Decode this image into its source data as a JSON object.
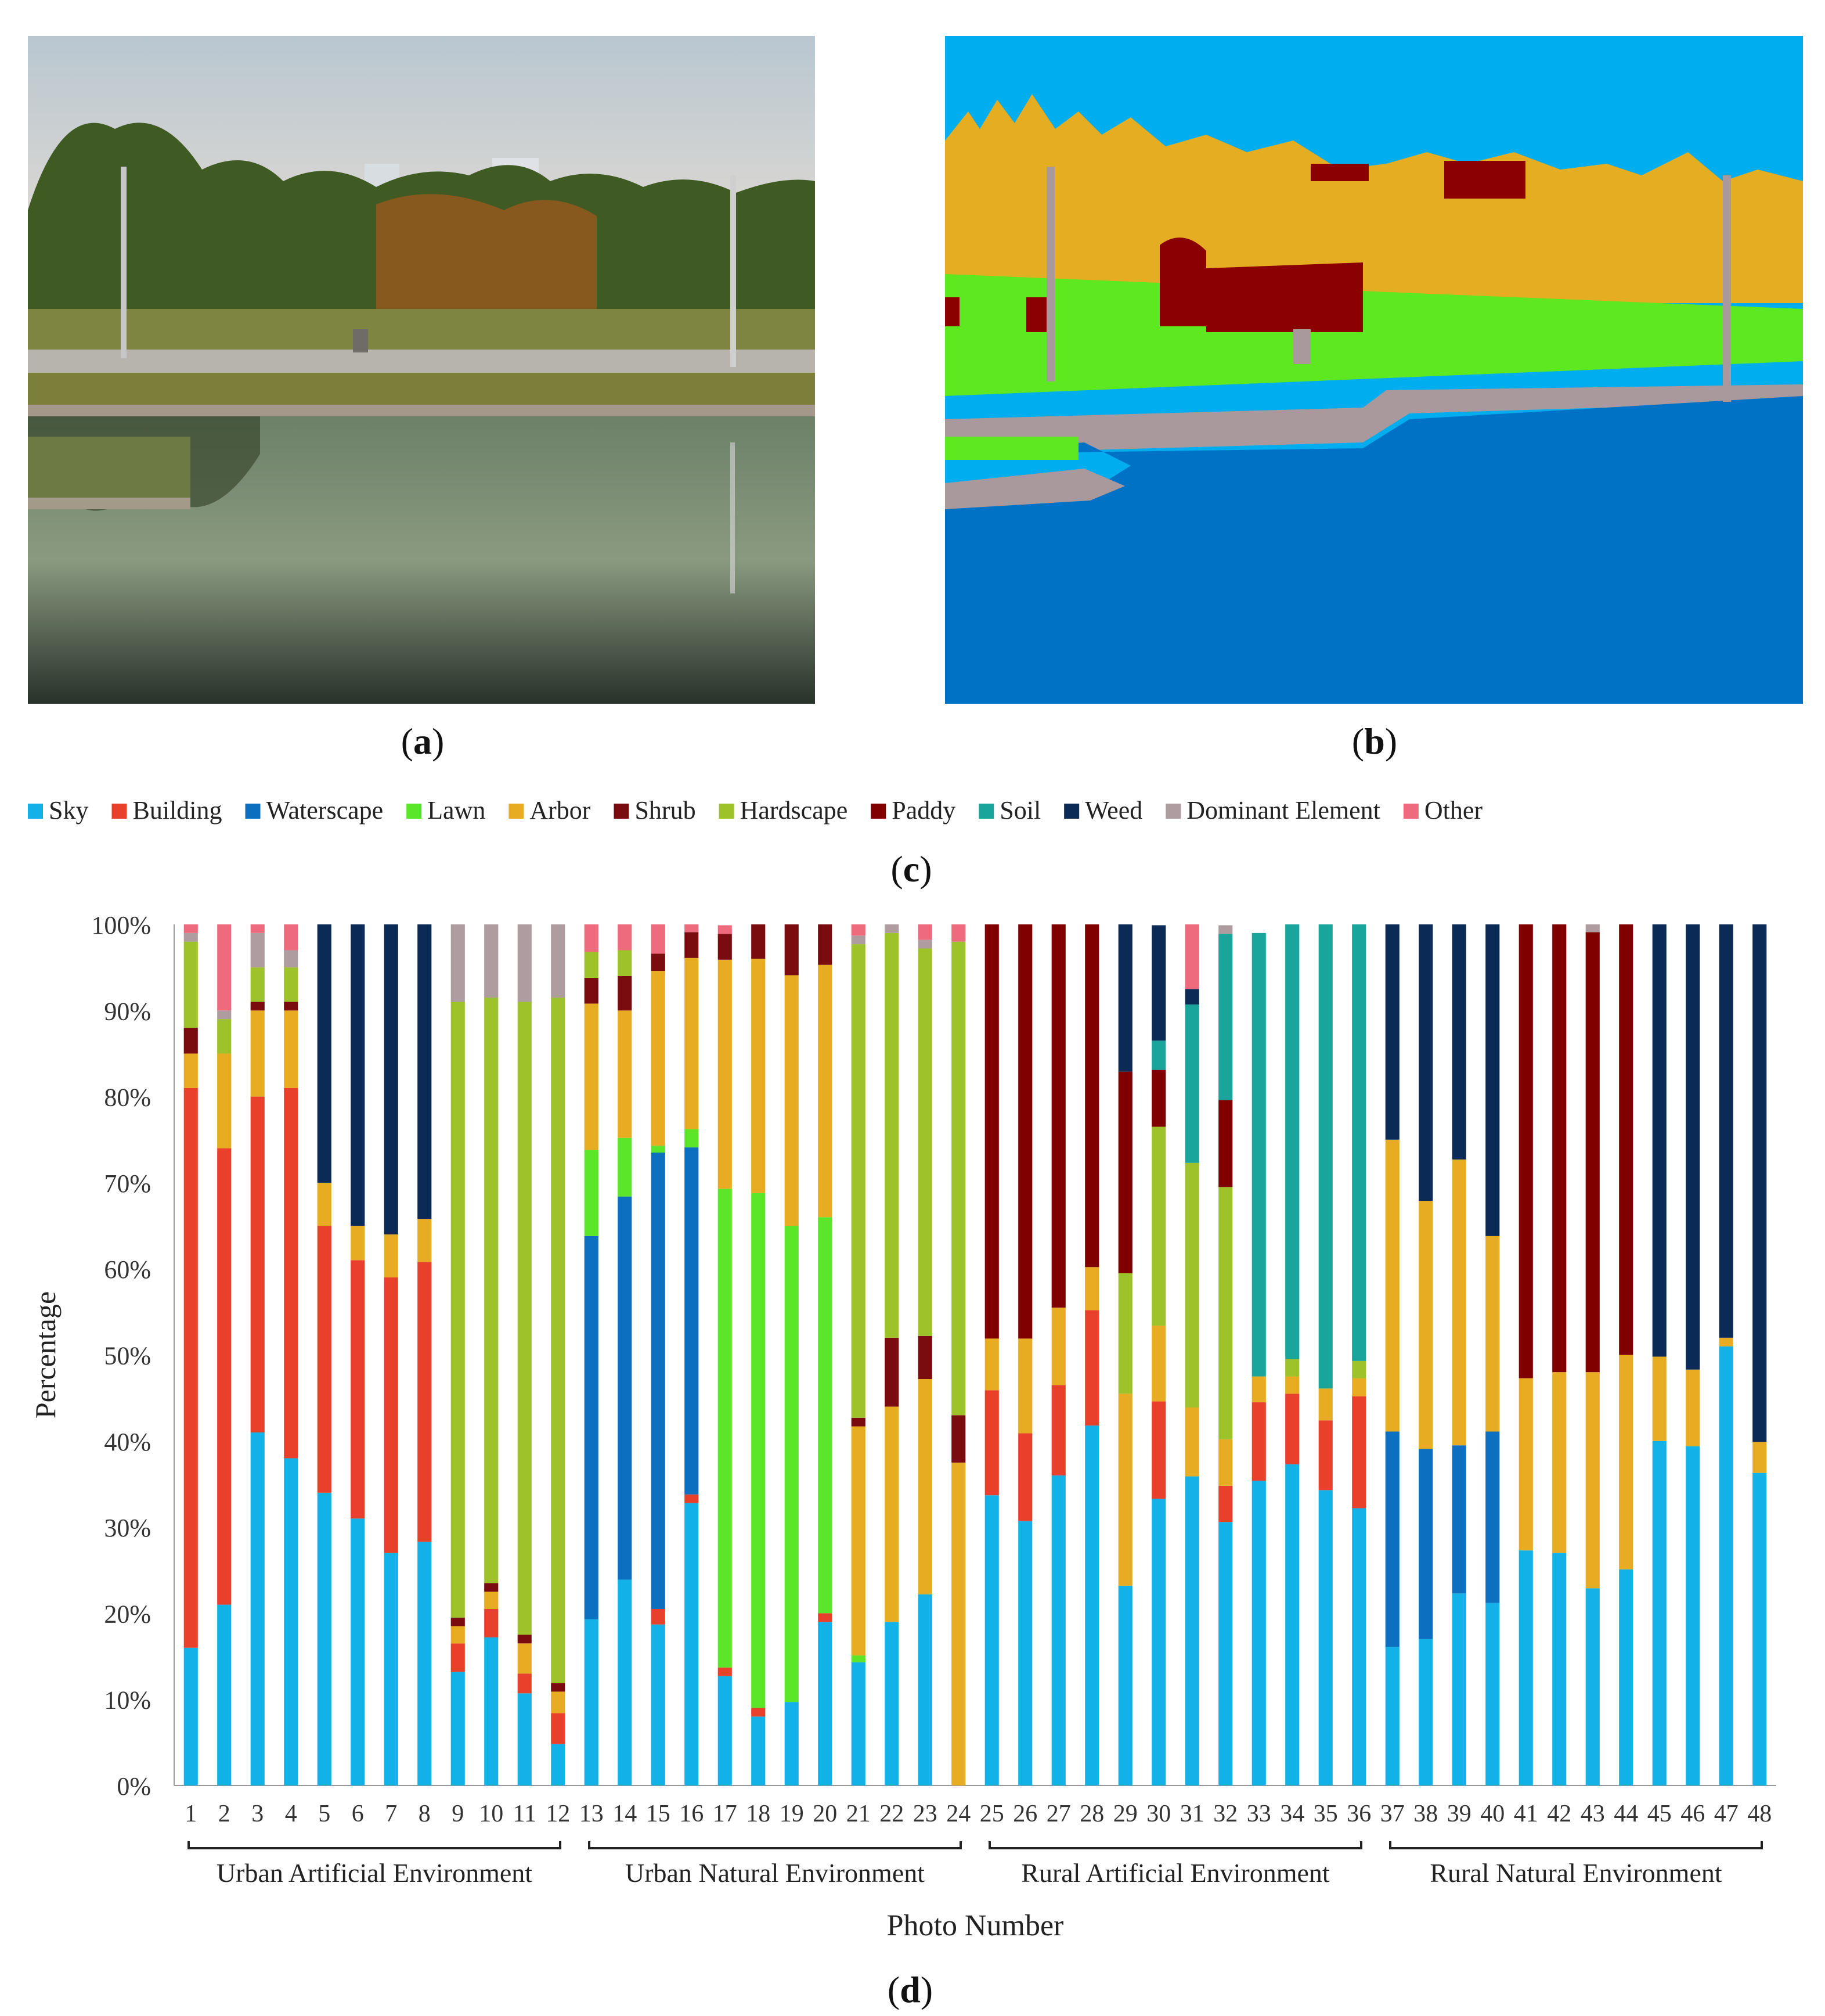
{
  "panels": {
    "a": {
      "label_open": "(",
      "letter": "a",
      "label_close": ")"
    },
    "b": {
      "label_open": "(",
      "letter": "b",
      "label_close": ")"
    },
    "c": {
      "label_open": "(",
      "letter": "c",
      "label_close": ")"
    },
    "d": {
      "label_open": "(",
      "letter": "d",
      "label_close": ")"
    }
  },
  "colors": {
    "Sky": "#12b2e8",
    "Building": "#e8402a",
    "Waterscape": "#0d6fbf",
    "Lawn": "#5ce62a",
    "Arbor": "#e8ac23",
    "Shrub": "#7a0b0e",
    "Hardscape": "#9dc22a",
    "Paddy": "#800000",
    "Soil": "#1aa59c",
    "Weed": "#0b2a55",
    "Dominant Element": "#ae9ca0",
    "Other": "#ee6b7d"
  },
  "segmentation_colors": {
    "sky": "#00adef",
    "arbor": "#e5ad22",
    "shrub": "#8b0000",
    "lawn": "#5de81f",
    "water": "#0072c6",
    "hardscape": "#a9999c"
  },
  "chart_data": {
    "type": "bar",
    "stacked": true,
    "xlabel": "Photo Number",
    "ylabel": "Percentage",
    "ylim": [
      0,
      100
    ],
    "yticks": [
      "0%",
      "10%",
      "20%",
      "30%",
      "40%",
      "50%",
      "60%",
      "70%",
      "80%",
      "90%",
      "100%"
    ],
    "categories": [
      "1",
      "2",
      "3",
      "4",
      "5",
      "6",
      "7",
      "8",
      "9",
      "10",
      "11",
      "12",
      "13",
      "14",
      "15",
      "16",
      "17",
      "18",
      "19",
      "20",
      "21",
      "22",
      "23",
      "24",
      "25",
      "26",
      "27",
      "28",
      "29",
      "30",
      "31",
      "32",
      "33",
      "34",
      "35",
      "36",
      "37",
      "38",
      "39",
      "40",
      "41",
      "42",
      "43",
      "44",
      "45",
      "46",
      "47",
      "48"
    ],
    "groups": [
      {
        "label": "Urban Artificial Environment",
        "from": 1,
        "to": 12
      },
      {
        "label": "Urban Natural Environment",
        "from": 13,
        "to": 24
      },
      {
        "label": "Rural  Artificial Environment",
        "from": 25,
        "to": 36
      },
      {
        "label": "Rural  Natural Environment",
        "from": 37,
        "to": 48
      }
    ],
    "series": [
      {
        "name": "Sky",
        "values": [
          16,
          21,
          41,
          38,
          34,
          31,
          27,
          28.3,
          13.2,
          17.2,
          10.7,
          4.8,
          19.3,
          23.9,
          18.7,
          32.8,
          12.7,
          8,
          9.7,
          19,
          14.3,
          19,
          22.2,
          0,
          33.7,
          30.7,
          36,
          41.8,
          23.2,
          33.3,
          35.9,
          30.6,
          35.4,
          37.3,
          34.3,
          32.2,
          16.1,
          17,
          22.3,
          21.2,
          27.3,
          27,
          22.9,
          25.1,
          40,
          39.4,
          51,
          36.3
        ]
      },
      {
        "name": "Building",
        "values": [
          65,
          53,
          39,
          43,
          31,
          30,
          32,
          32.5,
          3.3,
          3.3,
          2.3,
          3.6,
          0,
          0,
          1.8,
          1,
          1,
          1,
          0,
          1,
          0,
          0,
          0,
          0,
          12.2,
          10.2,
          10.5,
          13.4,
          0,
          11.3,
          0,
          4.2,
          9.1,
          8.2,
          8.1,
          13,
          0,
          0,
          0,
          0,
          0,
          0,
          0,
          0,
          0,
          0,
          0,
          0
        ]
      },
      {
        "name": "Waterscape",
        "values": [
          0,
          0,
          0,
          0,
          0,
          0,
          0,
          0,
          0,
          0,
          0,
          0,
          44.5,
          44.5,
          53,
          40.3,
          0,
          0,
          0,
          0,
          0,
          0,
          0,
          0,
          0,
          0,
          0,
          0,
          0,
          0,
          0,
          0,
          0,
          0,
          0,
          0,
          25,
          22.1,
          17.2,
          19.9,
          0,
          0,
          0,
          0,
          0,
          0,
          0,
          0
        ]
      },
      {
        "name": "Lawn",
        "values": [
          0,
          0,
          0,
          0,
          0,
          0,
          0,
          0,
          0,
          0,
          0,
          0,
          10,
          6.8,
          0.8,
          2.1,
          55.6,
          59.8,
          55.3,
          46,
          0.8,
          0,
          0,
          0,
          0,
          0,
          0,
          0,
          0,
          0,
          0,
          0,
          0,
          0,
          0,
          0,
          0,
          0,
          0,
          0,
          0,
          0,
          0,
          0,
          0,
          0,
          0,
          0
        ]
      },
      {
        "name": "Arbor",
        "values": [
          4,
          11,
          10,
          9,
          5,
          4,
          5,
          5,
          2,
          2,
          3.5,
          2.5,
          17,
          14.8,
          20.3,
          19.9,
          26.6,
          27.2,
          29.1,
          29.3,
          26.6,
          25,
          25,
          37.5,
          6,
          11,
          9,
          5,
          22.3,
          8.8,
          8,
          5.4,
          3,
          2,
          3.7,
          2.1,
          33.9,
          28.8,
          33.2,
          22.7,
          20,
          21,
          25.1,
          24.9,
          9.8,
          8.9,
          1,
          3.6
        ]
      },
      {
        "name": "Shrub",
        "values": [
          3,
          0,
          1,
          1,
          0,
          0,
          0,
          0,
          1,
          1,
          1,
          1,
          3,
          4,
          2,
          3,
          3,
          4,
          6,
          6,
          1,
          8,
          5,
          5.5,
          0,
          0,
          0,
          0,
          0,
          0,
          0,
          0,
          0,
          0,
          0,
          0,
          0,
          0,
          0,
          0,
          0,
          0,
          0,
          0,
          0,
          0,
          0,
          0
        ]
      },
      {
        "name": "Hardscape",
        "values": [
          10,
          4,
          4,
          4,
          0,
          0,
          0,
          0,
          71.5,
          68,
          73.5,
          79.6,
          3,
          3,
          0,
          0,
          0,
          0,
          0,
          0,
          55,
          47,
          45,
          55,
          0,
          0,
          0,
          0,
          14,
          23.1,
          28.4,
          29.3,
          0,
          2,
          0,
          2,
          0,
          0,
          0,
          0,
          0,
          0,
          0,
          0,
          0,
          0,
          0,
          0
        ]
      },
      {
        "name": "Paddy",
        "values": [
          0,
          0,
          0,
          0,
          0,
          0,
          0,
          0,
          0,
          0,
          0,
          0,
          0,
          0,
          0,
          0,
          0,
          0,
          0,
          0,
          0,
          0,
          0,
          0,
          48.1,
          48.1,
          44.5,
          39.8,
          23.4,
          6.6,
          0,
          10.1,
          0,
          0,
          0,
          0,
          0,
          0,
          0,
          0,
          52.7,
          52,
          51.1,
          50,
          0,
          0,
          0,
          0
        ]
      },
      {
        "name": "Soil",
        "values": [
          0,
          0,
          0,
          0,
          0,
          0,
          0,
          0,
          0,
          0,
          0,
          0,
          0,
          0,
          0,
          0,
          0,
          0,
          0,
          0,
          0,
          0,
          0,
          0,
          0,
          0,
          0,
          0,
          0,
          3.4,
          18.4,
          19.3,
          51.5,
          50.5,
          53.9,
          50.7,
          0,
          0,
          0,
          0,
          0,
          0,
          0,
          0,
          0,
          0,
          0,
          0
        ]
      },
      {
        "name": "Weed",
        "values": [
          0,
          0,
          0,
          0,
          30,
          35,
          36,
          34.2,
          0,
          0,
          0,
          0,
          0,
          0,
          0,
          0,
          0,
          0,
          0,
          0,
          0,
          0,
          0,
          0,
          0,
          0,
          0,
          0,
          17.1,
          13.4,
          1.8,
          0,
          0,
          0,
          0,
          0,
          25,
          32.1,
          27.3,
          36.2,
          0,
          0,
          0,
          0,
          50.2,
          51.7,
          48,
          60.1
        ]
      },
      {
        "name": "Dominant Element",
        "values": [
          1,
          1,
          4,
          2,
          0,
          0,
          0,
          0,
          9,
          8.5,
          9,
          8.5,
          0,
          0,
          0,
          0,
          0,
          0,
          0,
          0,
          1,
          1,
          1,
          0,
          0,
          0,
          0,
          0,
          0,
          0,
          0,
          1,
          0,
          0,
          0,
          0,
          0,
          0,
          0,
          0,
          0,
          0,
          0.9,
          0,
          0,
          0,
          0,
          0
        ]
      },
      {
        "name": "Other",
        "values": [
          1,
          10,
          1,
          3,
          0,
          0,
          0,
          0,
          0,
          0,
          0,
          0,
          3.2,
          3,
          4,
          1,
          1,
          0,
          0,
          0,
          1.3,
          0,
          1.8,
          2,
          0,
          0,
          0,
          0,
          0,
          0,
          7.5,
          0,
          0,
          0,
          0,
          0,
          0,
          0,
          0,
          0,
          0,
          0,
          0,
          0,
          0,
          0,
          0,
          0
        ]
      }
    ],
    "legend": [
      "Sky",
      "Building",
      "Waterscape",
      "Lawn",
      "Arbor",
      "Shrub",
      "Hardscape",
      "Paddy",
      "Soil",
      "Weed",
      "Dominant Element",
      "Other"
    ],
    "legend_position": "top",
    "grid": false
  }
}
